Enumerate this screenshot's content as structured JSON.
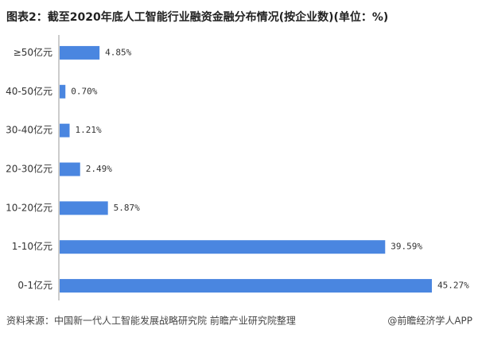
{
  "chart_data": {
    "type": "bar",
    "orientation": "horizontal",
    "title": "图表2：截至2020年底人工智能行业融资金融分布情况(按企业数)(单位：%)",
    "categories": [
      "≥50亿元",
      "40-50亿元",
      "30-40亿元",
      "20-30亿元",
      "10-20亿元",
      "1-10亿元",
      "0-1亿元"
    ],
    "values": [
      4.85,
      0.7,
      1.21,
      2.49,
      5.87,
      39.59,
      45.27
    ],
    "value_labels": [
      "4.85%",
      "0.70%",
      "1.21%",
      "2.49%",
      "5.87%",
      "39.59%",
      "45.27%"
    ],
    "color": "#4a86e0",
    "source": "资料来源：中国新一代人工智能发展战略研究院 前瞻产业研究院整理",
    "brand": "@前瞻经济学人APP"
  }
}
